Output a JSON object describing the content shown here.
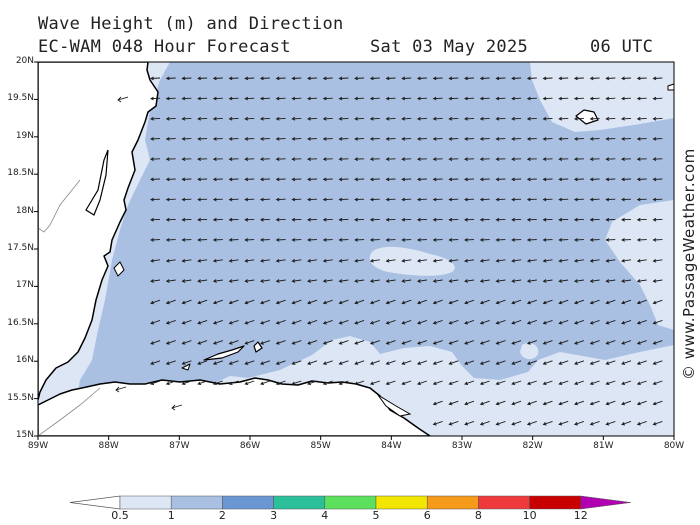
{
  "title": {
    "line1": "Wave Height (m) and Direction",
    "line2": "EC-WAM 048 Hour Forecast",
    "date": "Sat 03 May 2025",
    "time": "06 UTC"
  },
  "credit": "© www.PassageWeather.com",
  "axes": {
    "lat_labels": [
      "20N",
      "19.5N",
      "19N",
      "18.5N",
      "18N",
      "17.5N",
      "17N",
      "16.5N",
      "16N",
      "15.5N",
      "15N"
    ],
    "lon_labels": [
      "89W",
      "88W",
      "87W",
      "86W",
      "85W",
      "84W",
      "83W",
      "82W",
      "81W",
      "80W"
    ],
    "lat_range": [
      15,
      20
    ],
    "lon_range": [
      -89,
      -80
    ]
  },
  "colorbar": {
    "labels": [
      "0.5",
      "1",
      "2",
      "3",
      "4",
      "5",
      "6",
      "8",
      "10",
      "12"
    ],
    "colors": [
      "#dde6f5",
      "#a9c0e3",
      "#6a96d2",
      "#2bbf9a",
      "#5de05d",
      "#f2e600",
      "#f59a1a",
      "#ee3a3a",
      "#c80000",
      "#b000b0"
    ]
  },
  "colors": {
    "sea_low": "#a9c0e3",
    "sea_calm": "#dde6f5",
    "land": "#ffffff",
    "coast": "#000000",
    "arrow": "#1a1a1a"
  },
  "wave_direction": "arrows point west to west-southwest"
}
